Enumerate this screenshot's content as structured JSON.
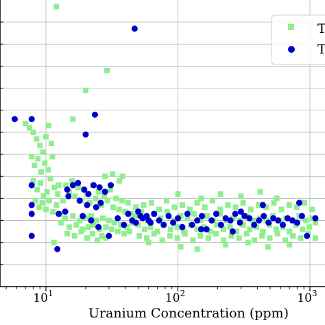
{
  "chart_data": {
    "type": "scatter",
    "x_scale": "log",
    "xlim": [
      5,
      1200
    ],
    "ylim": [
      0,
      13
    ],
    "xlabel": "Uranium Concentration (ppm)",
    "ylabel": "",
    "x_ticks": [
      {
        "value": 10,
        "base": "10",
        "exp": "1"
      },
      {
        "value": 100,
        "base": "10",
        "exp": "2"
      },
      {
        "value": 1000,
        "base": "10",
        "exp": "3"
      }
    ],
    "y_gridlines": [
      1,
      2,
      3,
      4,
      5,
      6,
      7,
      8,
      9,
      10,
      11,
      12
    ],
    "grid": true,
    "legend_position": "top-right",
    "series": [
      {
        "name": "T",
        "marker": "square",
        "color": "#90ee90",
        "points": [
          [
            12,
            12.7
          ],
          [
            29,
            9.8
          ],
          [
            11.5,
            2.0
          ],
          [
            16,
            7.6
          ],
          [
            20,
            8.9
          ],
          [
            12.5,
            4.6
          ],
          [
            7,
            7.4
          ],
          [
            7.5,
            7.2
          ],
          [
            8,
            7.0
          ],
          [
            8.5,
            6.7
          ],
          [
            9,
            6.4
          ],
          [
            9.5,
            6.1
          ],
          [
            10,
            6.8
          ],
          [
            10.5,
            7.3
          ],
          [
            11,
            6.5
          ],
          [
            7.8,
            5.9
          ],
          [
            8.2,
            5.5
          ],
          [
            8.7,
            5.8
          ],
          [
            9.2,
            5.2
          ],
          [
            9.8,
            5.6
          ],
          [
            10.4,
            5.3
          ],
          [
            11.2,
            5.9
          ],
          [
            8,
            4.8
          ],
          [
            8.6,
            4.4
          ],
          [
            9.1,
            4.7
          ],
          [
            9.6,
            4.1
          ],
          [
            10.2,
            4.3
          ],
          [
            10.8,
            4.9
          ],
          [
            11.6,
            4.5
          ],
          [
            12.3,
            4.2
          ],
          [
            8.3,
            3.9
          ],
          [
            8.9,
            3.6
          ],
          [
            9.4,
            3.8
          ],
          [
            10,
            3.5
          ],
          [
            10.6,
            3.9
          ],
          [
            11.3,
            3.4
          ],
          [
            12,
            3.7
          ],
          [
            12.8,
            3.3
          ],
          [
            13.5,
            3.9
          ],
          [
            14.2,
            4.6
          ],
          [
            15,
            4.3
          ],
          [
            15.8,
            4.8
          ],
          [
            16.6,
            4.1
          ],
          [
            17.5,
            4.5
          ],
          [
            18.4,
            3.9
          ],
          [
            19.4,
            4.4
          ],
          [
            20.4,
            4.2
          ],
          [
            21.5,
            3.8
          ],
          [
            22.6,
            4.6
          ],
          [
            23.8,
            4.0
          ],
          [
            25,
            4.3
          ],
          [
            26.3,
            3.7
          ],
          [
            27.7,
            4.1
          ],
          [
            29.2,
            3.9
          ],
          [
            30.7,
            4.4
          ],
          [
            32.3,
            3.6
          ],
          [
            34,
            4.0
          ],
          [
            35.8,
            3.5
          ],
          [
            37.7,
            3.9
          ],
          [
            39.7,
            3.4
          ],
          [
            41.8,
            3.8
          ],
          [
            44,
            3.3
          ],
          [
            13,
            2.9
          ],
          [
            14,
            3.1
          ],
          [
            15,
            2.7
          ],
          [
            16,
            3.2
          ],
          [
            17,
            2.8
          ],
          [
            18,
            3.0
          ],
          [
            19,
            2.6
          ],
          [
            20,
            3.1
          ],
          [
            21,
            2.7
          ],
          [
            22,
            3.2
          ],
          [
            23,
            2.8
          ],
          [
            24,
            3.0
          ],
          [
            25.5,
            2.6
          ],
          [
            27,
            3.1
          ],
          [
            28.5,
            2.7
          ],
          [
            30,
            3.0
          ],
          [
            31.5,
            2.6
          ],
          [
            33,
            2.9
          ],
          [
            35,
            2.5
          ],
          [
            37,
            2.8
          ],
          [
            39,
            2.4
          ],
          [
            41,
            2.7
          ],
          [
            43,
            2.5
          ],
          [
            45,
            2.9
          ],
          [
            14.5,
            2.4
          ],
          [
            16.5,
            2.3
          ],
          [
            18.5,
            2.5
          ],
          [
            20.5,
            2.2
          ],
          [
            22.5,
            2.4
          ],
          [
            24.5,
            2.1
          ],
          [
            26.5,
            2.3
          ],
          [
            28.5,
            2.2
          ],
          [
            47,
            3.2
          ],
          [
            50,
            2.8
          ],
          [
            53,
            3.4
          ],
          [
            56,
            2.6
          ],
          [
            59,
            3.0
          ],
          [
            62,
            2.7
          ],
          [
            66,
            3.3
          ],
          [
            70,
            2.5
          ],
          [
            74,
            3.1
          ],
          [
            78,
            2.8
          ],
          [
            83,
            3.4
          ],
          [
            88,
            2.6
          ],
          [
            93,
            3.0
          ],
          [
            99,
            2.7
          ],
          [
            105,
            3.2
          ],
          [
            111,
            2.5
          ],
          [
            118,
            3.1
          ],
          [
            125,
            2.8
          ],
          [
            132,
            3.3
          ],
          [
            140,
            2.6
          ],
          [
            148,
            3.0
          ],
          [
            157,
            2.7
          ],
          [
            166,
            3.2
          ],
          [
            176,
            2.5
          ],
          [
            186,
            3.0
          ],
          [
            197,
            2.8
          ],
          [
            209,
            3.3
          ],
          [
            221,
            2.6
          ],
          [
            234,
            3.0
          ],
          [
            248,
            2.7
          ],
          [
            263,
            3.1
          ],
          [
            278,
            2.5
          ],
          [
            295,
            3.0
          ],
          [
            312,
            2.8
          ],
          [
            331,
            3.2
          ],
          [
            350,
            2.6
          ],
          [
            371,
            3.0
          ],
          [
            393,
            2.7
          ],
          [
            416,
            3.1
          ],
          [
            441,
            2.5
          ],
          [
            467,
            3.0
          ],
          [
            495,
            2.8
          ],
          [
            524,
            3.2
          ],
          [
            555,
            2.6
          ],
          [
            588,
            3.0
          ],
          [
            623,
            2.7
          ],
          [
            660,
            3.1
          ],
          [
            699,
            2.5
          ],
          [
            740,
            3.0
          ],
          [
            784,
            2.8
          ],
          [
            830,
            3.2
          ],
          [
            880,
            2.6
          ],
          [
            932,
            3.0
          ],
          [
            987,
            2.7
          ],
          [
            1045,
            3.1
          ],
          [
            1100,
            2.9
          ],
          [
            48,
            3.6
          ],
          [
            55,
            3.7
          ],
          [
            63,
            3.8
          ],
          [
            72,
            3.5
          ],
          [
            82,
            3.9
          ],
          [
            94,
            3.6
          ],
          [
            108,
            3.7
          ],
          [
            123,
            3.5
          ],
          [
            140,
            3.8
          ],
          [
            160,
            3.6
          ],
          [
            183,
            3.9
          ],
          [
            209,
            3.5
          ],
          [
            239,
            3.7
          ],
          [
            273,
            3.6
          ],
          [
            312,
            3.8
          ],
          [
            357,
            3.5
          ],
          [
            408,
            3.7
          ],
          [
            466,
            3.6
          ],
          [
            533,
            3.8
          ],
          [
            609,
            3.5
          ],
          [
            696,
            3.7
          ],
          [
            795,
            3.6
          ],
          [
            909,
            3.8
          ],
          [
            1039,
            3.5
          ],
          [
            51,
            2.3
          ],
          [
            58,
            2.2
          ],
          [
            66,
            2.4
          ],
          [
            76,
            2.1
          ],
          [
            87,
            2.3
          ],
          [
            99,
            2.2
          ],
          [
            113,
            2.4
          ],
          [
            130,
            2.1
          ],
          [
            148,
            2.3
          ],
          [
            170,
            2.2
          ],
          [
            194,
            2.4
          ],
          [
            222,
            2.1
          ],
          [
            254,
            2.3
          ],
          [
            290,
            2.2
          ],
          [
            332,
            2.4
          ],
          [
            380,
            2.1
          ],
          [
            434,
            2.3
          ],
          [
            497,
            2.2
          ],
          [
            568,
            2.4
          ],
          [
            650,
            2.1
          ],
          [
            743,
            2.3
          ],
          [
            850,
            2.2
          ],
          [
            972,
            2.4
          ],
          [
            1100,
            2.2
          ],
          [
            150,
            4.0
          ],
          [
            210,
            4.2
          ],
          [
            300,
            4.1
          ],
          [
            420,
            4.3
          ],
          [
            560,
            4.0
          ],
          [
            38,
            5.0
          ],
          [
            36,
            4.8
          ],
          [
            32,
            5.1
          ],
          [
            28,
            5.0
          ],
          [
            60,
            2.0
          ],
          [
            105,
            1.8
          ],
          [
            140,
            1.7
          ],
          [
            230,
            1.9
          ],
          [
            340,
            2.0
          ],
          [
            480,
            1.8
          ],
          [
            700,
            1.9
          ],
          [
            100,
            4.2
          ]
        ]
      },
      {
        "name": "T",
        "marker": "circle",
        "color": "#0000cd",
        "points": [
          [
            47,
            11.7
          ],
          [
            23.5,
            7.8
          ],
          [
            20,
            6.9
          ],
          [
            5.8,
            7.6
          ],
          [
            7.8,
            7.6
          ],
          [
            12.2,
            1.7
          ],
          [
            7.8,
            2.3
          ],
          [
            7.8,
            3.3
          ],
          [
            7.8,
            3.7
          ],
          [
            7.8,
            4.6
          ],
          [
            14.5,
            4.4
          ],
          [
            16,
            4.6
          ],
          [
            17.5,
            4.7
          ],
          [
            19.5,
            4.4
          ],
          [
            21,
            4.2
          ],
          [
            23,
            4.6
          ],
          [
            25.5,
            4.5
          ],
          [
            28,
            4.3
          ],
          [
            31,
            4.6
          ],
          [
            14.8,
            4.1
          ],
          [
            18,
            3.9
          ],
          [
            20.5,
            3.7
          ],
          [
            24,
            3.6
          ],
          [
            26,
            3.8
          ],
          [
            12.5,
            3.3
          ],
          [
            14,
            3.4
          ],
          [
            19,
            3.2
          ],
          [
            22,
            3.0
          ],
          [
            25,
            2.7
          ],
          [
            30,
            2.3
          ],
          [
            35,
            3.1
          ],
          [
            39,
            2.8
          ],
          [
            42,
            3.3
          ],
          [
            45,
            3.0
          ],
          [
            50,
            3.4
          ],
          [
            54,
            3.1
          ],
          [
            58,
            3.2
          ],
          [
            62,
            2.9
          ],
          [
            66,
            3.3
          ],
          [
            72,
            3.0
          ],
          [
            78,
            2.8
          ],
          [
            85,
            3.2
          ],
          [
            92,
            2.9
          ],
          [
            100,
            3.1
          ],
          [
            108,
            2.7
          ],
          [
            118,
            3.3
          ],
          [
            128,
            2.8
          ],
          [
            140,
            3.0
          ],
          [
            152,
            3.2
          ],
          [
            165,
            2.6
          ],
          [
            180,
            3.0
          ],
          [
            195,
            3.3
          ],
          [
            212,
            2.8
          ],
          [
            230,
            3.1
          ],
          [
            250,
            3.0
          ],
          [
            272,
            3.3
          ],
          [
            295,
            2.9
          ],
          [
            320,
            3.2
          ],
          [
            348,
            3.1
          ],
          [
            378,
            2.8
          ],
          [
            411,
            3.0
          ],
          [
            447,
            3.2
          ],
          [
            486,
            2.9
          ],
          [
            528,
            3.1
          ],
          [
            574,
            3.0
          ],
          [
            624,
            2.8
          ],
          [
            678,
            3.1
          ],
          [
            737,
            3.0
          ],
          [
            801,
            2.9
          ],
          [
            870,
            3.2
          ],
          [
            950,
            2.3
          ],
          [
            1100,
            3.1
          ],
          [
            830,
            3.8
          ],
          [
            440,
            3.7
          ],
          [
            300,
            3.4
          ],
          [
            260,
            2.5
          ],
          [
            150,
            2.6
          ],
          [
            60,
            3.0
          ],
          [
            48,
            2.9
          ],
          [
            52,
            3.2
          ]
        ]
      }
    ]
  }
}
